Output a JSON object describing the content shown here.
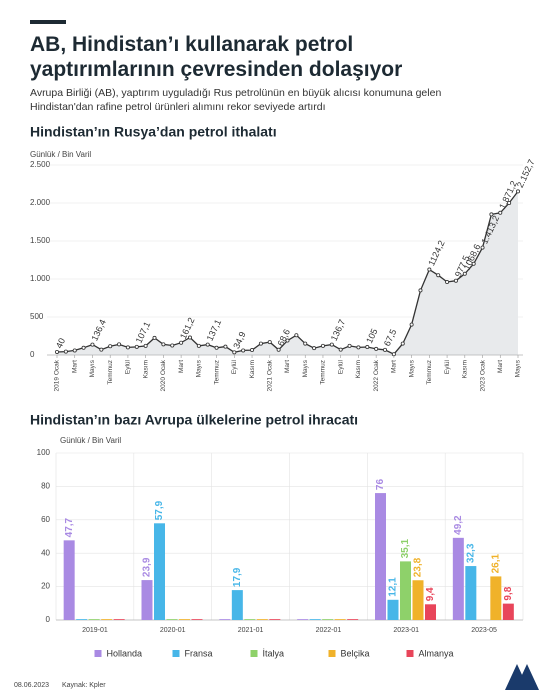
{
  "header": {
    "title": "AB, Hindistan’ı kullanarak petrol yaptırımlarının çevresinden dolaşıyor",
    "subtitle": "Avrupa Birliği (AB), yaptırım uyguladığı Rus petrolünün en büyük alıcısı konumuna gelen Hindistan'dan rafine petrol ürünleri alımını rekor seviyede artırdı"
  },
  "footer": {
    "date": "08.06.2023",
    "source": "Kaynak: Kpler"
  },
  "chart_data": [
    {
      "type": "line",
      "title": "Hindistan’ın Rusya’dan petrol ithalatı",
      "ylabel": "Günlük / Bin Varil",
      "categories": [
        "2019 Ocak",
        null,
        "Mart",
        null,
        "Mayıs",
        null,
        "Temmuz",
        null,
        "Eylül",
        null,
        "Kasım",
        null,
        "2020 Ocak",
        null,
        "Mart",
        null,
        "Mayıs",
        null,
        "Temmuz",
        null,
        "Eylül",
        null,
        "Kasım",
        null,
        "2021 Ocak",
        null,
        "Mart",
        null,
        "Mayıs",
        null,
        "Temmuz",
        null,
        "Eylül",
        null,
        "Kasım",
        null,
        "2022 Ocak",
        null,
        "Mart",
        null,
        "Mayıs",
        null,
        "Temmuz",
        null,
        "Eylül",
        null,
        "Kasım",
        null,
        "2023 Ocak",
        null,
        "Mart",
        null,
        "Mayıs"
      ],
      "values": [
        40,
        45,
        60,
        95,
        136.4,
        70,
        115,
        140,
        100,
        107.1,
        120,
        225,
        140,
        125,
        161.2,
        230,
        120,
        137.1,
        95,
        110,
        34.9,
        60,
        65,
        150,
        170,
        68.6,
        190,
        260,
        150,
        90,
        120,
        136.7,
        70,
        120,
        100,
        105,
        80,
        67.5,
        10,
        150,
        400,
        850,
        1124.2,
        1050,
        960,
        977.5,
        1068.6,
        1200,
        1413.2,
        1850,
        1871.2,
        2000,
        2152.7
      ],
      "value_labels": [
        "40",
        null,
        null,
        null,
        "136,4",
        null,
        null,
        null,
        null,
        "107,1",
        null,
        null,
        null,
        null,
        "161,2",
        null,
        null,
        "137,1",
        null,
        null,
        "34,9",
        null,
        null,
        null,
        null,
        "68,6",
        null,
        null,
        null,
        null,
        null,
        "136,7",
        null,
        null,
        null,
        "105",
        null,
        "67,5",
        null,
        null,
        null,
        null,
        "1124,2",
        null,
        null,
        "977,5",
        "1068,6",
        null,
        "1.413,2",
        null,
        "1.871,2",
        null,
        "2.152,7"
      ],
      "color": "#333333",
      "area_color": "#e8eaec",
      "ylim": [
        0,
        2500
      ],
      "yticks": [
        0,
        500,
        {
          "value": 1000,
          "label": "1.000"
        },
        {
          "value": 1500,
          "label": "1.500"
        },
        {
          "value": 2000,
          "label": "2.000"
        },
        {
          "value": 2500,
          "label": "2.500"
        }
      ],
      "grid": true
    },
    {
      "type": "grouped_bar",
      "title": "Hindistan’ın bazı Avrupa ülkelerine petrol ihracatı",
      "ylabel": "Günlük / Bin Varil",
      "categories": [
        "2019-01",
        "2020-01",
        "2021-01",
        "2022-01",
        "2023-01",
        "2023-05"
      ],
      "series": [
        {
          "name": "Hollanda",
          "color": "#a98ae3",
          "values": [
            47.7,
            23.9,
            0.5,
            0.5,
            76,
            49.2
          ],
          "value_labels": [
            "47,7",
            "23,9",
            null,
            null,
            "76",
            "49,2"
          ]
        },
        {
          "name": "Fransa",
          "color": "#47b6e8",
          "values": [
            0.5,
            57.9,
            17.9,
            0.5,
            12.1,
            32.3
          ],
          "value_labels": [
            null,
            "57,9",
            "17,9",
            null,
            "12,1",
            "32,3"
          ]
        },
        {
          "name": "İtalya",
          "color": "#8ed16a",
          "values": [
            0.5,
            0.5,
            0.5,
            0.5,
            35.1,
            0
          ],
          "value_labels": [
            null,
            null,
            null,
            null,
            "35,1",
            null
          ]
        },
        {
          "name": "Belçika",
          "color": "#f0b22a",
          "values": [
            0.5,
            0.5,
            0.5,
            0.5,
            23.8,
            26.1
          ],
          "value_labels": [
            null,
            null,
            null,
            null,
            "23,8",
            "26,1"
          ]
        },
        {
          "name": "Almanya",
          "color": "#e8455a",
          "values": [
            0.5,
            0.5,
            0.5,
            0.5,
            9.4,
            9.8
          ],
          "value_labels": [
            null,
            null,
            null,
            null,
            "9,4",
            "9,8"
          ]
        }
      ],
      "ylim": [
        0,
        100
      ],
      "yticks": [
        0,
        20,
        40,
        60,
        80,
        100
      ],
      "grid": true,
      "legend": "bottom"
    }
  ]
}
